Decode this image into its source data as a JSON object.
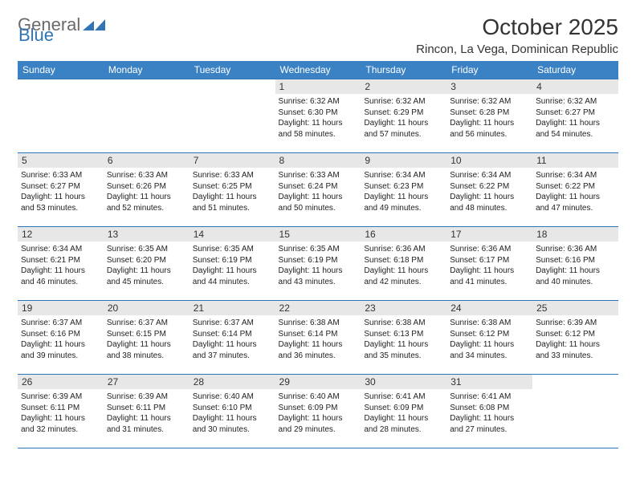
{
  "logo": {
    "general": "General",
    "blue": "Blue"
  },
  "title": "October 2025",
  "location": "Rincon, La Vega, Dominican Republic",
  "colors": {
    "header_bg": "#3a82c4",
    "border": "#2f75b5",
    "daynum_bg": "#e7e7e7",
    "text_dark": "#333333"
  },
  "day_headers": [
    "Sunday",
    "Monday",
    "Tuesday",
    "Wednesday",
    "Thursday",
    "Friday",
    "Saturday"
  ],
  "weeks": [
    [
      null,
      null,
      null,
      {
        "n": "1",
        "sunrise": "6:32 AM",
        "sunset": "6:30 PM",
        "dh": "11",
        "dm": "58"
      },
      {
        "n": "2",
        "sunrise": "6:32 AM",
        "sunset": "6:29 PM",
        "dh": "11",
        "dm": "57"
      },
      {
        "n": "3",
        "sunrise": "6:32 AM",
        "sunset": "6:28 PM",
        "dh": "11",
        "dm": "56"
      },
      {
        "n": "4",
        "sunrise": "6:32 AM",
        "sunset": "6:27 PM",
        "dh": "11",
        "dm": "54"
      }
    ],
    [
      {
        "n": "5",
        "sunrise": "6:33 AM",
        "sunset": "6:27 PM",
        "dh": "11",
        "dm": "53"
      },
      {
        "n": "6",
        "sunrise": "6:33 AM",
        "sunset": "6:26 PM",
        "dh": "11",
        "dm": "52"
      },
      {
        "n": "7",
        "sunrise": "6:33 AM",
        "sunset": "6:25 PM",
        "dh": "11",
        "dm": "51"
      },
      {
        "n": "8",
        "sunrise": "6:33 AM",
        "sunset": "6:24 PM",
        "dh": "11",
        "dm": "50"
      },
      {
        "n": "9",
        "sunrise": "6:34 AM",
        "sunset": "6:23 PM",
        "dh": "11",
        "dm": "49"
      },
      {
        "n": "10",
        "sunrise": "6:34 AM",
        "sunset": "6:22 PM",
        "dh": "11",
        "dm": "48"
      },
      {
        "n": "11",
        "sunrise": "6:34 AM",
        "sunset": "6:22 PM",
        "dh": "11",
        "dm": "47"
      }
    ],
    [
      {
        "n": "12",
        "sunrise": "6:34 AM",
        "sunset": "6:21 PM",
        "dh": "11",
        "dm": "46"
      },
      {
        "n": "13",
        "sunrise": "6:35 AM",
        "sunset": "6:20 PM",
        "dh": "11",
        "dm": "45"
      },
      {
        "n": "14",
        "sunrise": "6:35 AM",
        "sunset": "6:19 PM",
        "dh": "11",
        "dm": "44"
      },
      {
        "n": "15",
        "sunrise": "6:35 AM",
        "sunset": "6:19 PM",
        "dh": "11",
        "dm": "43"
      },
      {
        "n": "16",
        "sunrise": "6:36 AM",
        "sunset": "6:18 PM",
        "dh": "11",
        "dm": "42"
      },
      {
        "n": "17",
        "sunrise": "6:36 AM",
        "sunset": "6:17 PM",
        "dh": "11",
        "dm": "41"
      },
      {
        "n": "18",
        "sunrise": "6:36 AM",
        "sunset": "6:16 PM",
        "dh": "11",
        "dm": "40"
      }
    ],
    [
      {
        "n": "19",
        "sunrise": "6:37 AM",
        "sunset": "6:16 PM",
        "dh": "11",
        "dm": "39"
      },
      {
        "n": "20",
        "sunrise": "6:37 AM",
        "sunset": "6:15 PM",
        "dh": "11",
        "dm": "38"
      },
      {
        "n": "21",
        "sunrise": "6:37 AM",
        "sunset": "6:14 PM",
        "dh": "11",
        "dm": "37"
      },
      {
        "n": "22",
        "sunrise": "6:38 AM",
        "sunset": "6:14 PM",
        "dh": "11",
        "dm": "36"
      },
      {
        "n": "23",
        "sunrise": "6:38 AM",
        "sunset": "6:13 PM",
        "dh": "11",
        "dm": "35"
      },
      {
        "n": "24",
        "sunrise": "6:38 AM",
        "sunset": "6:12 PM",
        "dh": "11",
        "dm": "34"
      },
      {
        "n": "25",
        "sunrise": "6:39 AM",
        "sunset": "6:12 PM",
        "dh": "11",
        "dm": "33"
      }
    ],
    [
      {
        "n": "26",
        "sunrise": "6:39 AM",
        "sunset": "6:11 PM",
        "dh": "11",
        "dm": "32"
      },
      {
        "n": "27",
        "sunrise": "6:39 AM",
        "sunset": "6:11 PM",
        "dh": "11",
        "dm": "31"
      },
      {
        "n": "28",
        "sunrise": "6:40 AM",
        "sunset": "6:10 PM",
        "dh": "11",
        "dm": "30"
      },
      {
        "n": "29",
        "sunrise": "6:40 AM",
        "sunset": "6:09 PM",
        "dh": "11",
        "dm": "29"
      },
      {
        "n": "30",
        "sunrise": "6:41 AM",
        "sunset": "6:09 PM",
        "dh": "11",
        "dm": "28"
      },
      {
        "n": "31",
        "sunrise": "6:41 AM",
        "sunset": "6:08 PM",
        "dh": "11",
        "dm": "27"
      },
      null
    ]
  ]
}
